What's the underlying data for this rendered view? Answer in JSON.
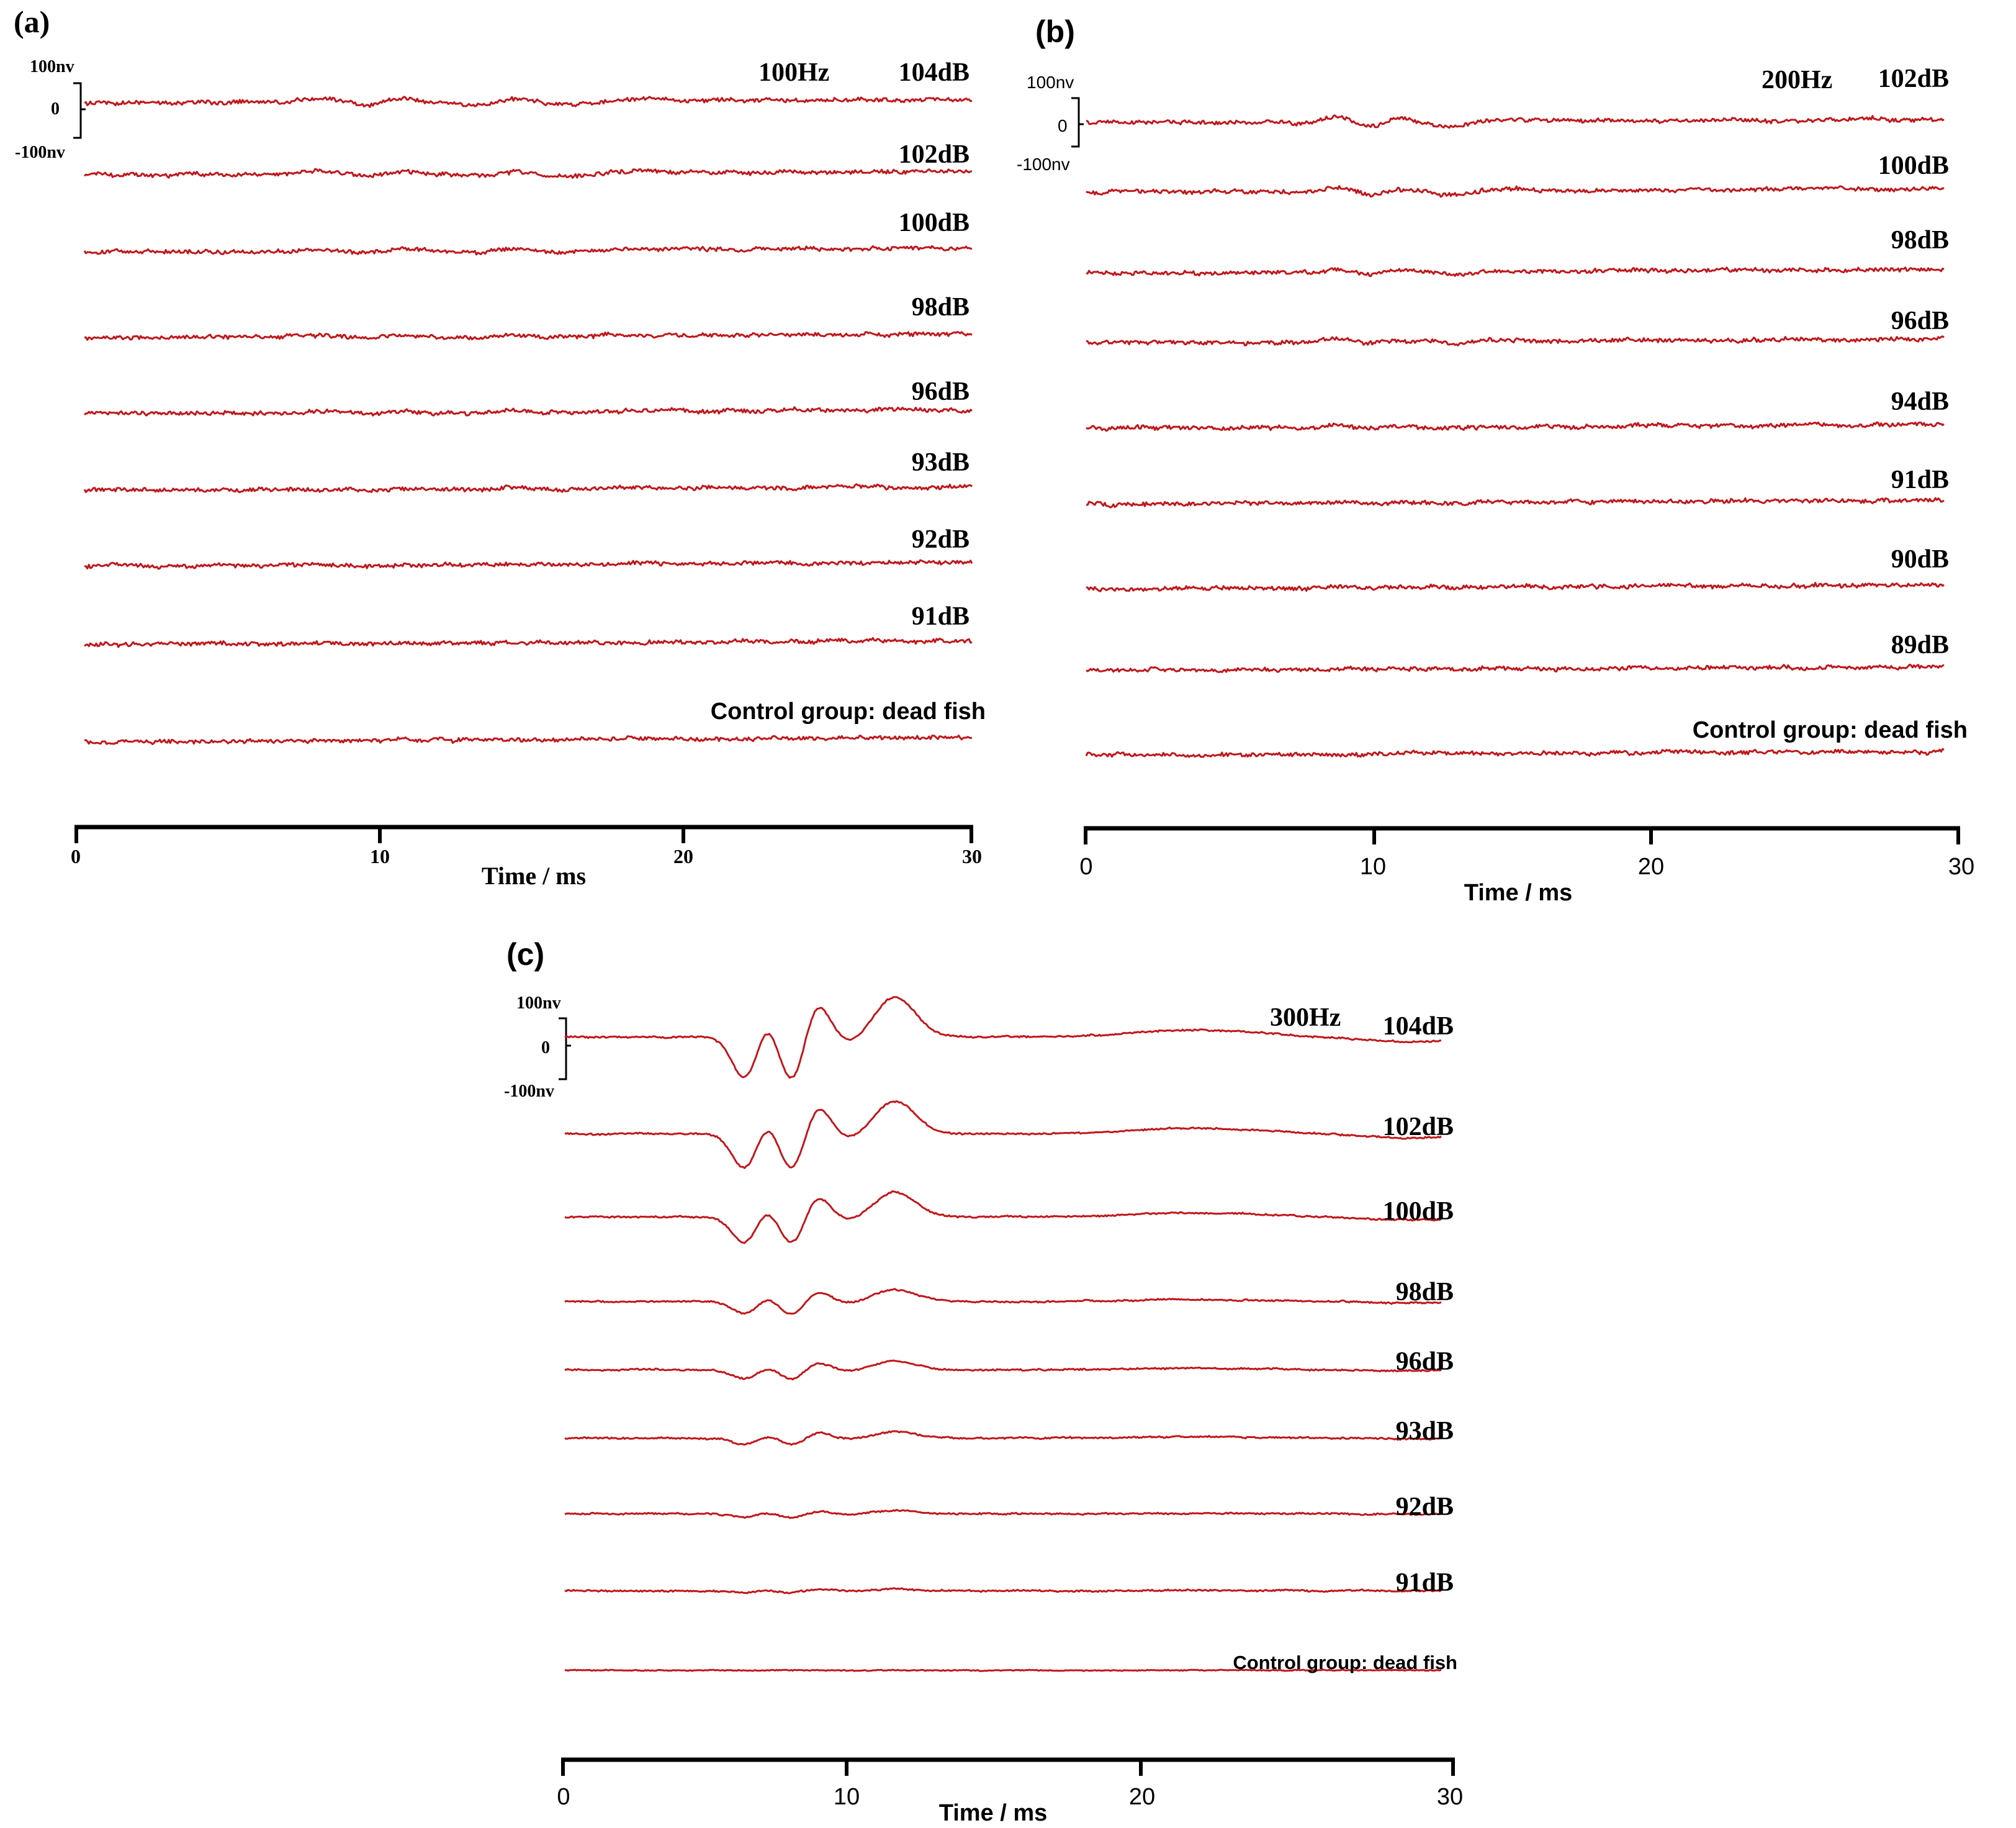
{
  "chart_data": [
    {
      "type": "line",
      "panel": "(a)",
      "frequency": "100Hz",
      "scale": {
        "top": "100nv",
        "mid": "0",
        "bottom": "-100nv"
      },
      "x_ticks": [
        "0",
        "10",
        "20",
        "30"
      ],
      "xlabel": "Time / ms",
      "xlim": [
        0,
        30
      ],
      "series": [
        {
          "name": "104dB",
          "amplitude": 0.35
        },
        {
          "name": "102dB",
          "amplitude": 0.28
        },
        {
          "name": "100dB",
          "amplitude": 0.22
        },
        {
          "name": "98dB",
          "amplitude": 0.16
        },
        {
          "name": "96dB",
          "amplitude": 0.1
        },
        {
          "name": "93dB",
          "amplitude": 0.05
        },
        {
          "name": "92dB",
          "amplitude": 0.03
        },
        {
          "name": "91dB",
          "amplitude": 0.02
        },
        {
          "name": "Control group: dead fish",
          "amplitude": 0.0
        }
      ]
    },
    {
      "type": "line",
      "panel": "(b)",
      "frequency": "200Hz",
      "scale": {
        "top": "100nv",
        "mid": "0",
        "bottom": "-100nv"
      },
      "x_ticks": [
        "0",
        "10",
        "20",
        "30"
      ],
      "xlabel": "Time / ms",
      "xlim": [
        0,
        30
      ],
      "series": [
        {
          "name": "102dB",
          "amplitude": 0.4
        },
        {
          "name": "100dB",
          "amplitude": 0.3
        },
        {
          "name": "98dB",
          "amplitude": 0.22
        },
        {
          "name": "96dB",
          "amplitude": 0.16
        },
        {
          "name": "94dB",
          "amplitude": 0.12
        },
        {
          "name": "91dB",
          "amplitude": 0.06
        },
        {
          "name": "90dB",
          "amplitude": 0.03
        },
        {
          "name": "89dB",
          "amplitude": 0.02
        },
        {
          "name": "Control group: dead fish",
          "amplitude": 0.0
        }
      ]
    },
    {
      "type": "line",
      "panel": "(c)",
      "frequency": "300Hz",
      "scale": {
        "top": "100nv",
        "mid": "0",
        "bottom": "-100nv"
      },
      "x_ticks": [
        "0",
        "10",
        "20",
        "30"
      ],
      "xlabel": "Time / ms",
      "xlim": [
        0,
        30
      ],
      "series": [
        {
          "name": "104dB",
          "amplitude": 1.0
        },
        {
          "name": "102dB",
          "amplitude": 0.82
        },
        {
          "name": "100dB",
          "amplitude": 0.62
        },
        {
          "name": "98dB",
          "amplitude": 0.3
        },
        {
          "name": "96dB",
          "amplitude": 0.22
        },
        {
          "name": "93dB",
          "amplitude": 0.15
        },
        {
          "name": "92dB",
          "amplitude": 0.08
        },
        {
          "name": "91dB",
          "amplitude": 0.04
        },
        {
          "name": "Control group: dead fish",
          "amplitude": 0.0
        }
      ]
    }
  ],
  "colors": {
    "trace": "#c0171b",
    "axis": "#000000"
  }
}
